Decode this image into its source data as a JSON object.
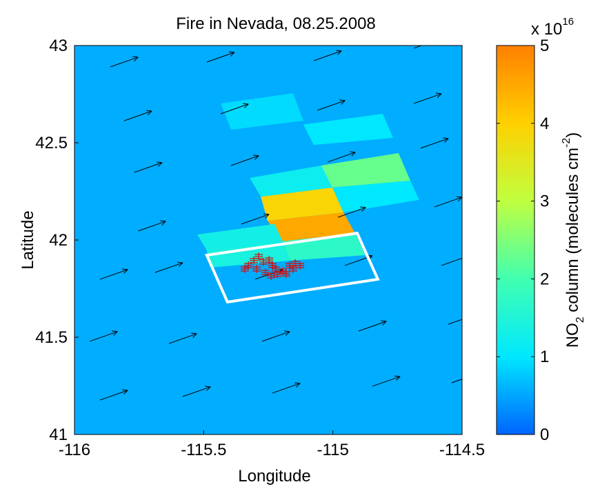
{
  "chart_data": {
    "type": "heatmap",
    "title": "Fire in Nevada, 08.25.2008",
    "x_label": "Longitude",
    "y_label": "Latitude",
    "xlim": [
      -116,
      -114.5
    ],
    "ylim": [
      41,
      43
    ],
    "xticks": [
      -116,
      -115.5,
      -115,
      -114.5
    ],
    "yticks": [
      41,
      41.5,
      42,
      42.5,
      43
    ],
    "background_value": 0.55,
    "colormap": [
      "#0064ff",
      "#00e8ff",
      "#40ffb0",
      "#c0ff40",
      "#ffd000",
      "#ff8000"
    ],
    "cells": [
      {
        "lon": [
          -115.253,
          -114.959,
          -114.914,
          -115.194
        ],
        "lat": [
          42.099,
          42.142,
          42.035,
          41.993
        ],
        "value": 4.5
      },
      {
        "lon": [
          -115.279,
          -115.002,
          -114.959,
          -115.253
        ],
        "lat": [
          42.223,
          42.27,
          42.142,
          42.099
        ],
        "value": 3.9
      },
      {
        "lon": [
          -115.322,
          -115.045,
          -115.002,
          -115.279
        ],
        "lat": [
          42.319,
          42.383,
          42.27,
          42.223
        ],
        "value": 1.2
      },
      {
        "lon": [
          -115.045,
          -114.746,
          -114.7,
          -115.002
        ],
        "lat": [
          42.383,
          42.447,
          42.305,
          42.27
        ],
        "value": 2.3
      },
      {
        "lon": [
          -115.002,
          -114.7,
          -114.666,
          -114.959
        ],
        "lat": [
          42.27,
          42.305,
          42.206,
          42.142
        ],
        "value": 1.0
      },
      {
        "lon": [
          -115.525,
          -115.226,
          -115.194,
          -115.488
        ],
        "lat": [
          42.028,
          42.082,
          41.993,
          41.947
        ],
        "value": 1.3
      },
      {
        "lon": [
          -115.194,
          -114.914,
          -114.874,
          -115.167
        ],
        "lat": [
          41.993,
          42.035,
          41.922,
          41.894
        ],
        "value": 1.7
      },
      {
        "lon": [
          -115.488,
          -115.194,
          -115.167,
          -115.474
        ],
        "lat": [
          41.947,
          41.993,
          41.894,
          41.858
        ],
        "value": 1.4
      },
      {
        "lon": [
          -115.434,
          -115.154,
          -115.114,
          -115.394
        ],
        "lat": [
          42.702,
          42.755,
          42.613,
          42.567
        ],
        "value": 0.9
      },
      {
        "lon": [
          -115.114,
          -114.807,
          -114.767,
          -115.074
        ],
        "lat": [
          42.594,
          42.649,
          42.525,
          42.489
        ],
        "value": 1.0
      }
    ],
    "box": {
      "lon": [
        -115.488,
        -114.906,
        -114.826,
        -115.408
      ],
      "lat": [
        41.922,
        42.035,
        41.798,
        41.681
      ]
    },
    "fires": {
      "color": "#d01010",
      "lon": [
        -115.327,
        -115.306,
        -115.287,
        -115.269,
        -115.247,
        -115.234,
        -115.295,
        -115.261,
        -115.239,
        -115.215,
        -115.194,
        -115.181,
        -115.167,
        -115.146,
        -115.127,
        -115.154,
        -115.341,
        -115.221
      ],
      "lat": [
        41.869,
        41.894,
        41.915,
        41.887,
        41.897,
        41.869,
        41.851,
        41.833,
        41.816,
        41.823,
        41.84,
        41.826,
        41.869,
        41.88,
        41.869,
        41.851,
        41.851,
        41.851
      ]
    },
    "wind": {
      "u": 0.107,
      "v": 0.05,
      "lon": [
        -115.861,
        -115.488,
        -115.074,
        -114.687,
        -115.808,
        -115.434,
        -115.06,
        -114.687,
        -115.768,
        -115.394,
        -115.02,
        -114.66,
        -115.754,
        -115.354,
        -114.98,
        -114.607,
        -115.901,
        -115.688,
        -115.301,
        -114.954,
        -114.58,
        -115.941,
        -115.634,
        -115.274,
        -114.9,
        -114.553,
        -115.901,
        -115.581,
        -115.234,
        -114.847,
        -114.54
      ],
      "lat": [
        42.89,
        42.915,
        42.922,
        42.986,
        42.613,
        42.649,
        42.667,
        42.702,
        42.348,
        42.383,
        42.401,
        42.472,
        42.046,
        42.082,
        42.117,
        42.17,
        41.798,
        41.833,
        41.798,
        41.869,
        41.869,
        41.479,
        41.468,
        41.479,
        41.532,
        41.567,
        41.177,
        41.195,
        41.213,
        41.248,
        41.266
      ]
    },
    "colorbar": {
      "label_parts": [
        "NO",
        "2",
        " column (molecules cm",
        "-2",
        ")"
      ],
      "multiplier": "x 10",
      "exponent": "16",
      "lim": [
        0,
        5
      ],
      "ticks": [
        0,
        1,
        2,
        3,
        4,
        5
      ]
    }
  }
}
